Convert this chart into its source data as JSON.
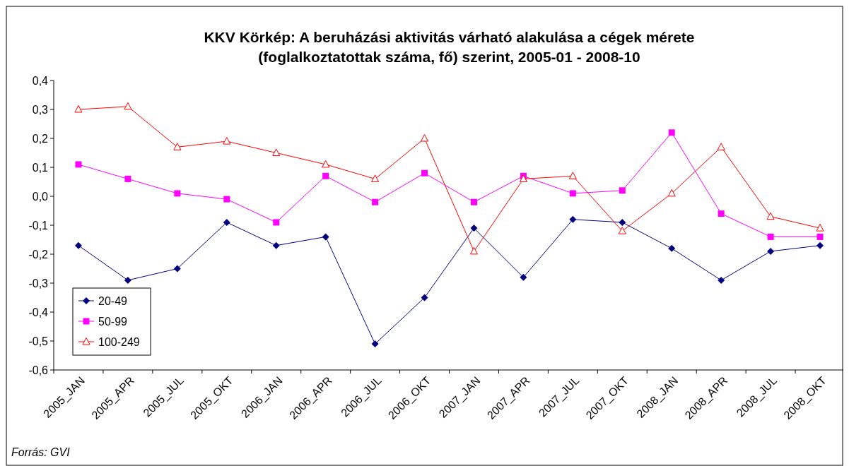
{
  "chart_data": {
    "type": "line",
    "title": "KKV Körkép: A beruházási aktivitás várható alakulása a cégek mérete (foglalkoztatottak száma, fő) szerint, 2005-01 - 2008-10",
    "categories": [
      "2005_JAN",
      "2005_APR",
      "2005_JUL",
      "2005_OKT",
      "2006_JAN",
      "2006_APR",
      "2006_JUL",
      "2006_OKT",
      "2007_JAN",
      "2007_APR",
      "2007_JUL",
      "2007_OKT",
      "2008_JAN",
      "2008_APR",
      "2008_JUL",
      "2008_OKT"
    ],
    "series": [
      {
        "name": "20-49",
        "color": "#000080",
        "marker": "diamond",
        "values": [
          -0.17,
          -0.29,
          -0.25,
          -0.09,
          -0.17,
          -0.14,
          -0.51,
          -0.35,
          -0.11,
          -0.28,
          -0.08,
          -0.09,
          -0.18,
          -0.29,
          -0.19,
          -0.17
        ]
      },
      {
        "name": "50-99",
        "color": "#ff00ff",
        "marker": "square",
        "values": [
          0.11,
          0.06,
          0.01,
          -0.01,
          -0.09,
          0.07,
          -0.02,
          0.08,
          -0.02,
          0.07,
          0.01,
          0.02,
          0.22,
          -0.06,
          -0.14,
          -0.14
        ]
      },
      {
        "name": "100-249",
        "color": "#ff0000",
        "marker": "triangle",
        "values": [
          0.3,
          0.31,
          0.17,
          0.19,
          0.15,
          0.11,
          0.06,
          0.2,
          -0.19,
          0.06,
          0.07,
          -0.12,
          0.01,
          0.17,
          -0.07,
          -0.11
        ]
      }
    ],
    "ylim": [
      -0.6,
      0.4
    ],
    "yticks": [
      {
        "value": 0.4,
        "label": "0,4"
      },
      {
        "value": 0.3,
        "label": "0,3"
      },
      {
        "value": 0.2,
        "label": "0,2"
      },
      {
        "value": 0.1,
        "label": "0,1"
      },
      {
        "value": 0,
        "label": "0,0"
      },
      {
        "value": -0.1,
        "label": "-0,1"
      },
      {
        "value": -0.2,
        "label": "-0,2"
      },
      {
        "value": -0.3,
        "label": "-0,3"
      },
      {
        "value": -0.4,
        "label": "-0,4"
      },
      {
        "value": -0.5,
        "label": "-0,5"
      },
      {
        "value": -0.6,
        "label": "-0,6"
      }
    ],
    "grid": false,
    "legend": "bottom left",
    "line_style": "solid",
    "annotations": [
      "Forrás: GVI"
    ]
  }
}
